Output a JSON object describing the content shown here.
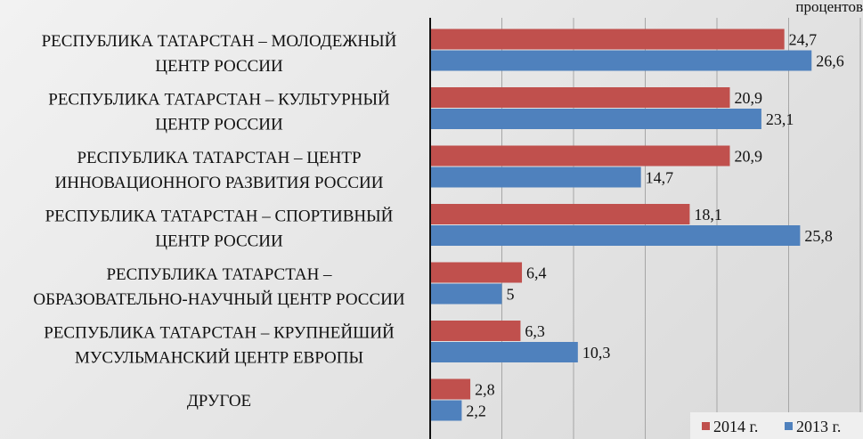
{
  "chart_data": {
    "type": "bar",
    "orientation": "horizontal",
    "unit": "процентов",
    "categories": [
      [
        "РЕСПУБЛИКА ТАТАРСТАН – МОЛОДЕЖНЫЙ",
        "ЦЕНТР РОССИИ"
      ],
      [
        "РЕСПУБЛИКА ТАТАРСТАН – КУЛЬТУРНЫЙ",
        "ЦЕНТР РОССИИ"
      ],
      [
        "РЕСПУБЛИКА ТАТАРСТАН – ЦЕНТР",
        "ИННОВАЦИОННОГО РАЗВИТИЯ РОССИИ"
      ],
      [
        "РЕСПУБЛИКА ТАТАРСТАН – СПОРТИВНЫЙ",
        "ЦЕНТР РОССИИ"
      ],
      [
        "РЕСПУБЛИКА ТАТАРСТАН –",
        "ОБРАЗОВАТЕЛЬНО-НАУЧНЫЙ ЦЕНТР РОССИИ"
      ],
      [
        "РЕСПУБЛИКА ТАТАРСТАН – КРУПНЕЙШИЙ",
        "МУСУЛЬМАНСКИЙ ЦЕНТР ЕВРОПЫ"
      ],
      [
        "ДРУГОЕ"
      ]
    ],
    "series": [
      {
        "name": "2014 г.",
        "color": "#c0504d",
        "values": [
          24.7,
          20.9,
          20.9,
          18.1,
          6.4,
          6.3,
          2.8
        ],
        "labels": [
          "24,7",
          "20,9",
          "20,9",
          "18,1",
          "6,4",
          "6,3",
          "2,8"
        ]
      },
      {
        "name": "2013 г.",
        "color": "#4f81bd",
        "values": [
          26.6,
          23.1,
          14.7,
          25.8,
          5,
          10.3,
          2.2
        ],
        "labels": [
          "26,6",
          "23,1",
          "14,7",
          "25,8",
          "5",
          "10,3",
          "2,2"
        ]
      }
    ],
    "xlim": [
      0,
      30
    ],
    "gridlines": "vertical",
    "legend_position": "bottom-right"
  }
}
